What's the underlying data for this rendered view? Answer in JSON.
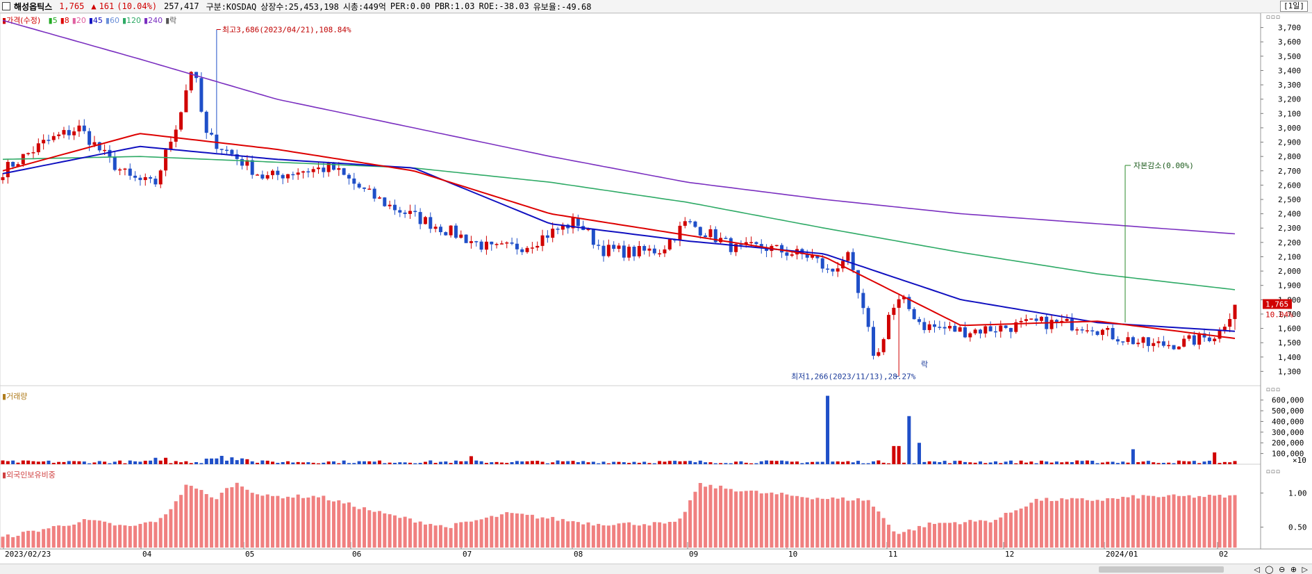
{
  "header": {
    "stock_name": "해성옵틱스",
    "price": "1,765",
    "change_arrow": "▲",
    "change": "161",
    "change_pct": "(10.04%)",
    "volume": "257,417",
    "market": "구분:KOSDAQ",
    "shares": "상장수:25,453,198",
    "market_cap": "시총:449억",
    "per": "PER:0.00",
    "pbr": "PBR:1.03",
    "roe": "ROE:-38.03",
    "reserve": "유보율:-49.68",
    "period": "[1일]"
  },
  "legend": {
    "price_label": "가격(수정)",
    "items": [
      {
        "label": "5",
        "color": "#22aa22"
      },
      {
        "label": "8",
        "color": "#dd0000"
      },
      {
        "label": "20",
        "color": "#e060a0"
      },
      {
        "label": "45",
        "color": "#1010c0"
      },
      {
        "label": "60",
        "color": "#6a8fd8"
      },
      {
        "label": "120",
        "color": "#2eaa66"
      },
      {
        "label": "240",
        "color": "#7a2fc0"
      },
      {
        "label": "락",
        "color": "#555555"
      }
    ]
  },
  "panels": {
    "volume_title": "거래량",
    "volume_unit": "×10",
    "foreign_title": "외국인보유비중"
  },
  "annotations": {
    "high": "최고3,686(2023/04/21),108.84%",
    "low": "최저1,266(2023/11/13),28.27%",
    "capital_reduction": "자본감소(0.00%)",
    "halt_mark": "락"
  },
  "price_tag": {
    "value": "1,765",
    "pct": "10.04%"
  },
  "chart_data": [
    {
      "type": "candlestick",
      "title": "",
      "ylim": [
        1200,
        3800
      ],
      "yticks": [
        "3,700",
        "3,600",
        "3,500",
        "3,400",
        "3,300",
        "3,200",
        "3,100",
        "3,000",
        "2,900",
        "2,800",
        "2,700",
        "2,600",
        "2,500",
        "2,400",
        "2,300",
        "2,200",
        "2,100",
        "2,000",
        "1,900",
        "1,800",
        "1,700",
        "1,600",
        "1,500",
        "1,400",
        "1,300"
      ],
      "x_labels": [
        "2023/02/23",
        "04",
        "05",
        "06",
        "07",
        "08",
        "09",
        "10",
        "11",
        "12",
        "2024/01",
        "02"
      ],
      "series": [
        {
          "name": "240",
          "values": [
            3750,
            3480,
            3200,
            3000,
            2800,
            2620,
            2500,
            2400,
            2330,
            2260
          ]
        },
        {
          "name": "120",
          "values": [
            2780,
            2800,
            2760,
            2720,
            2620,
            2480,
            2300,
            2130,
            1980,
            1870
          ]
        },
        {
          "name": "45",
          "values": [
            2680,
            2870,
            2780,
            2720,
            2330,
            2210,
            2120,
            1800,
            1640,
            1580
          ]
        },
        {
          "name": "8",
          "values": [
            2700,
            2960,
            2850,
            2700,
            2400,
            2250,
            2100,
            1620,
            1650,
            1530
          ]
        }
      ],
      "last": {
        "open": 1600,
        "close": 1765,
        "high": 1765,
        "low": 1590
      },
      "high": 3686,
      "low": 1266
    },
    {
      "type": "bar",
      "title": "",
      "name": "거래량",
      "ylim": [
        0,
        650000
      ],
      "yticks": [
        "600,000",
        "500,000",
        "400,000",
        "300,000",
        "200,000",
        "100,000"
      ],
      "notable_values": [
        {
          "date": "2023/09",
          "value": 640000
        },
        {
          "date": "2023/11/14",
          "value": 450000
        },
        {
          "date": "2023/11/16",
          "value": 200000
        },
        {
          "date": "2024/01",
          "value": 140000
        },
        {
          "date": "2024/02",
          "value": 110000
        }
      ]
    },
    {
      "type": "bar",
      "title": "",
      "name": "외국인보유비중",
      "ylim": [
        0.2,
        1.3
      ],
      "yticks": [
        "1.00",
        "0.50"
      ],
      "range": [
        0.3,
        1.22
      ]
    }
  ],
  "colors": {
    "up": "#d00000",
    "down": "#1f4fc8",
    "foreign_bar": "#f08080"
  }
}
